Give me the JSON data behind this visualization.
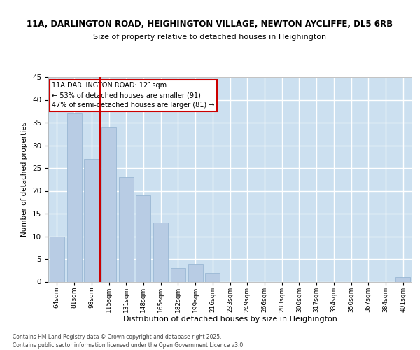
{
  "title1": "11A, DARLINGTON ROAD, HEIGHINGTON VILLAGE, NEWTON AYCLIFFE, DL5 6RB",
  "title2": "Size of property relative to detached houses in Heighington",
  "xlabel": "Distribution of detached houses by size in Heighington",
  "ylabel": "Number of detached properties",
  "categories": [
    "64sqm",
    "81sqm",
    "98sqm",
    "115sqm",
    "131sqm",
    "148sqm",
    "165sqm",
    "182sqm",
    "199sqm",
    "216sqm",
    "233sqm",
    "249sqm",
    "266sqm",
    "283sqm",
    "300sqm",
    "317sqm",
    "334sqm",
    "350sqm",
    "367sqm",
    "384sqm",
    "401sqm"
  ],
  "values": [
    10,
    37,
    27,
    34,
    23,
    19,
    13,
    3,
    4,
    2,
    0,
    0,
    0,
    0,
    0,
    0,
    0,
    0,
    0,
    0,
    1
  ],
  "bar_color": "#b8cce4",
  "bar_edgecolor": "#9ab8d4",
  "ylim": [
    0,
    45
  ],
  "yticks": [
    0,
    5,
    10,
    15,
    20,
    25,
    30,
    35,
    40,
    45
  ],
  "property_line_x": 2.5,
  "property_line_label": "11A DARLINGTON ROAD: 121sqm",
  "annotation_line1": "← 53% of detached houses are smaller (91)",
  "annotation_line2": "47% of semi-detached houses are larger (81) →",
  "annotation_box_facecolor": "#ffffff",
  "annotation_box_edgecolor": "#cc0000",
  "vline_color": "#cc0000",
  "plot_background": "#cce0f0",
  "grid_color": "#ffffff",
  "fig_background": "#ffffff",
  "footer1": "Contains HM Land Registry data © Crown copyright and database right 2025.",
  "footer2": "Contains public sector information licensed under the Open Government Licence v3.0."
}
